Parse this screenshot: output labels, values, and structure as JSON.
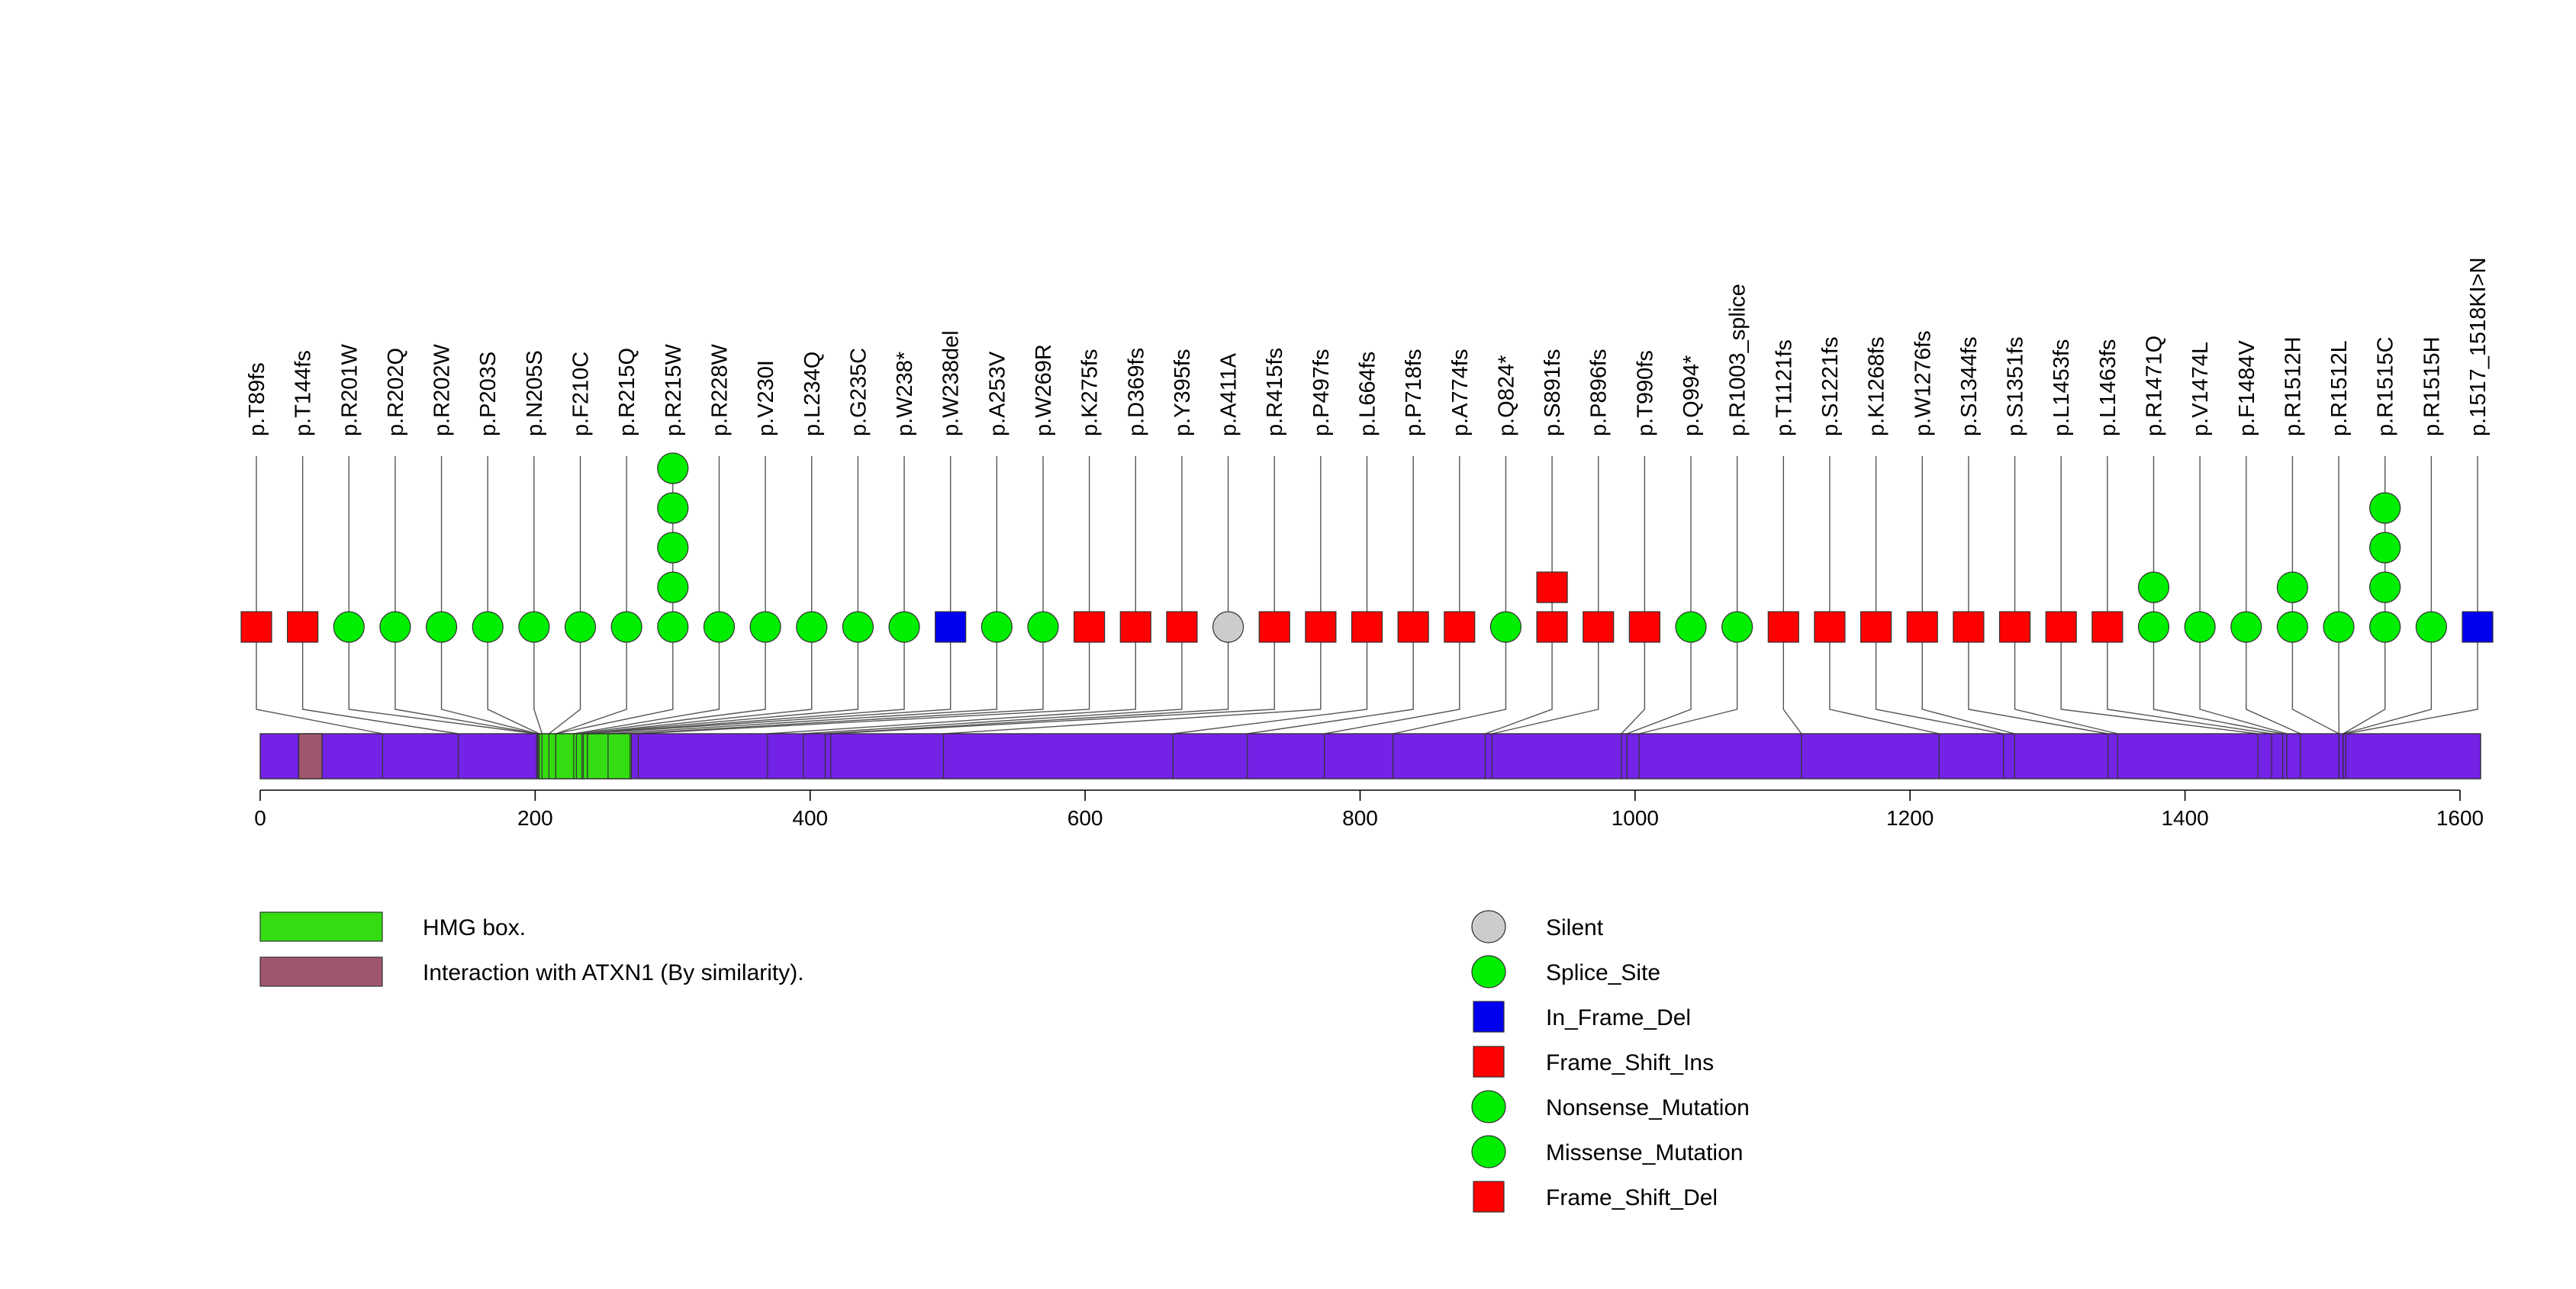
{
  "chart_data": {
    "type": "lollipop",
    "protein_length": 1615,
    "xlim": [
      0,
      1615
    ],
    "axis_ticks": [
      0,
      200,
      400,
      600,
      800,
      1000,
      1200,
      1400,
      1600
    ],
    "mutation_labels": [
      "p.T89fs",
      "p.T144fs",
      "p.R201W",
      "p.R202Q",
      "p.R202W",
      "p.P203S",
      "p.N205S",
      "p.F210C",
      "p.R215Q",
      "p.R215W",
      "p.R228W",
      "p.V230I",
      "p.L234Q",
      "p.G235C",
      "p.W238*",
      "p.W238del",
      "p.A253V",
      "p.W269R",
      "p.K275fs",
      "p.D369fs",
      "p.Y395fs",
      "p.A411A",
      "p.R415fs",
      "p.P497fs",
      "p.L664fs",
      "p.P718fs",
      "p.A774fs",
      "p.Q824*",
      "p.S891fs",
      "p.P896fs",
      "p.T990fs",
      "p.Q994*",
      "p.R1003_splice",
      "p.T1121fs",
      "p.S1221fs",
      "p.K1268fs",
      "p.W1276fs",
      "p.S1344fs",
      "p.S1351fs",
      "p.L1453fs",
      "p.L1463fs",
      "p.R1471Q",
      "p.V1474L",
      "p.F1484V",
      "p.R1512H",
      "p.R1512L",
      "p.R1515C",
      "p.R1515H",
      "p.1517_1518KI>N"
    ],
    "mutations": [
      {
        "position": 89,
        "types": [
          "Frame_Shift_Del"
        ]
      },
      {
        "position": 144,
        "types": [
          "Frame_Shift_Del"
        ]
      },
      {
        "position": 201,
        "types": [
          "Missense_Mutation"
        ]
      },
      {
        "position": 202,
        "types": [
          "Missense_Mutation"
        ]
      },
      {
        "position": 202,
        "types": [
          "Missense_Mutation"
        ]
      },
      {
        "position": 203,
        "types": [
          "Missense_Mutation"
        ]
      },
      {
        "position": 205,
        "types": [
          "Missense_Mutation"
        ]
      },
      {
        "position": 210,
        "types": [
          "Missense_Mutation"
        ]
      },
      {
        "position": 215,
        "types": [
          "Missense_Mutation"
        ]
      },
      {
        "position": 215,
        "types": [
          "Missense_Mutation",
          "Missense_Mutation",
          "Missense_Mutation",
          "Missense_Mutation",
          "Missense_Mutation"
        ]
      },
      {
        "position": 228,
        "types": [
          "Missense_Mutation"
        ]
      },
      {
        "position": 230,
        "types": [
          "Missense_Mutation"
        ]
      },
      {
        "position": 234,
        "types": [
          "Missense_Mutation"
        ]
      },
      {
        "position": 235,
        "types": [
          "Missense_Mutation"
        ]
      },
      {
        "position": 238,
        "types": [
          "Nonsense_Mutation"
        ]
      },
      {
        "position": 238,
        "types": [
          "In_Frame_Del"
        ]
      },
      {
        "position": 253,
        "types": [
          "Missense_Mutation"
        ]
      },
      {
        "position": 269,
        "types": [
          "Missense_Mutation"
        ]
      },
      {
        "position": 275,
        "types": [
          "Frame_Shift_Del"
        ]
      },
      {
        "position": 369,
        "types": [
          "Frame_Shift_Del"
        ]
      },
      {
        "position": 395,
        "types": [
          "Frame_Shift_Del"
        ]
      },
      {
        "position": 411,
        "types": [
          "Silent"
        ]
      },
      {
        "position": 415,
        "types": [
          "Frame_Shift_Del"
        ]
      },
      {
        "position": 497,
        "types": [
          "Frame_Shift_Del"
        ]
      },
      {
        "position": 664,
        "types": [
          "Frame_Shift_Del"
        ]
      },
      {
        "position": 718,
        "types": [
          "Frame_Shift_Del"
        ]
      },
      {
        "position": 774,
        "types": [
          "Frame_Shift_Del"
        ]
      },
      {
        "position": 824,
        "types": [
          "Nonsense_Mutation"
        ]
      },
      {
        "position": 891,
        "types": [
          "Frame_Shift_Del",
          "Frame_Shift_Ins"
        ]
      },
      {
        "position": 896,
        "types": [
          "Frame_Shift_Del"
        ]
      },
      {
        "position": 990,
        "types": [
          "Frame_Shift_Del"
        ]
      },
      {
        "position": 994,
        "types": [
          "Nonsense_Mutation"
        ]
      },
      {
        "position": 1003,
        "types": [
          "Splice_Site"
        ]
      },
      {
        "position": 1121,
        "types": [
          "Frame_Shift_Del"
        ]
      },
      {
        "position": 1221,
        "types": [
          "Frame_Shift_Del"
        ]
      },
      {
        "position": 1268,
        "types": [
          "Frame_Shift_Del"
        ]
      },
      {
        "position": 1276,
        "types": [
          "Frame_Shift_Del"
        ]
      },
      {
        "position": 1344,
        "types": [
          "Frame_Shift_Del"
        ]
      },
      {
        "position": 1351,
        "types": [
          "Frame_Shift_Del"
        ]
      },
      {
        "position": 1453,
        "types": [
          "Frame_Shift_Del"
        ]
      },
      {
        "position": 1463,
        "types": [
          "Frame_Shift_Del"
        ]
      },
      {
        "position": 1471,
        "types": [
          "Missense_Mutation",
          "Missense_Mutation"
        ]
      },
      {
        "position": 1474,
        "types": [
          "Missense_Mutation"
        ]
      },
      {
        "position": 1484,
        "types": [
          "Missense_Mutation"
        ]
      },
      {
        "position": 1512,
        "types": [
          "Missense_Mutation",
          "Missense_Mutation"
        ]
      },
      {
        "position": 1512,
        "types": [
          "Missense_Mutation"
        ]
      },
      {
        "position": 1515,
        "types": [
          "Missense_Mutation",
          "Missense_Mutation",
          "Missense_Mutation",
          "Missense_Mutation"
        ]
      },
      {
        "position": 1515,
        "types": [
          "Missense_Mutation"
        ]
      },
      {
        "position": 1517,
        "types": [
          "In_Frame_Del"
        ]
      }
    ],
    "domains": [
      {
        "name": "HMG box.",
        "start": 202,
        "end": 270,
        "color": "#33dd11"
      },
      {
        "name": "Interaction with ATXN1 (By similarity).",
        "start": 28,
        "end": 45,
        "color": "#a0566e"
      }
    ],
    "domain_legend": [
      {
        "label": "HMG box.",
        "color": "#33dd11"
      },
      {
        "label": "Interaction with ATXN1 (By similarity).",
        "color": "#a0566e"
      }
    ],
    "mutation_type_legend": [
      {
        "label": "Silent",
        "shape": "circle",
        "color": "#cccccc"
      },
      {
        "label": "Splice_Site",
        "shape": "circle",
        "color": "#00ee00"
      },
      {
        "label": "In_Frame_Del",
        "shape": "square",
        "color": "#0000ee"
      },
      {
        "label": "Frame_Shift_Ins",
        "shape": "square",
        "color": "#ff0000"
      },
      {
        "label": "Nonsense_Mutation",
        "shape": "circle",
        "color": "#00ee00"
      },
      {
        "label": "Missense_Mutation",
        "shape": "circle",
        "color": "#00ee00"
      },
      {
        "label": "Frame_Shift_Del",
        "shape": "square",
        "color": "#ff0000"
      }
    ],
    "type_style": {
      "Silent": {
        "shape": "circle",
        "color": "#cccccc"
      },
      "Splice_Site": {
        "shape": "circle",
        "color": "#00ee00"
      },
      "In_Frame_Del": {
        "shape": "square",
        "color": "#0000ee"
      },
      "Frame_Shift_Ins": {
        "shape": "square",
        "color": "#ff0000"
      },
      "Nonsense_Mutation": {
        "shape": "circle",
        "color": "#00ee00"
      },
      "Missense_Mutation": {
        "shape": "circle",
        "color": "#00ee00"
      },
      "Frame_Shift_Del": {
        "shape": "square",
        "color": "#ff0000"
      }
    },
    "protein_color": "#7322e6"
  }
}
